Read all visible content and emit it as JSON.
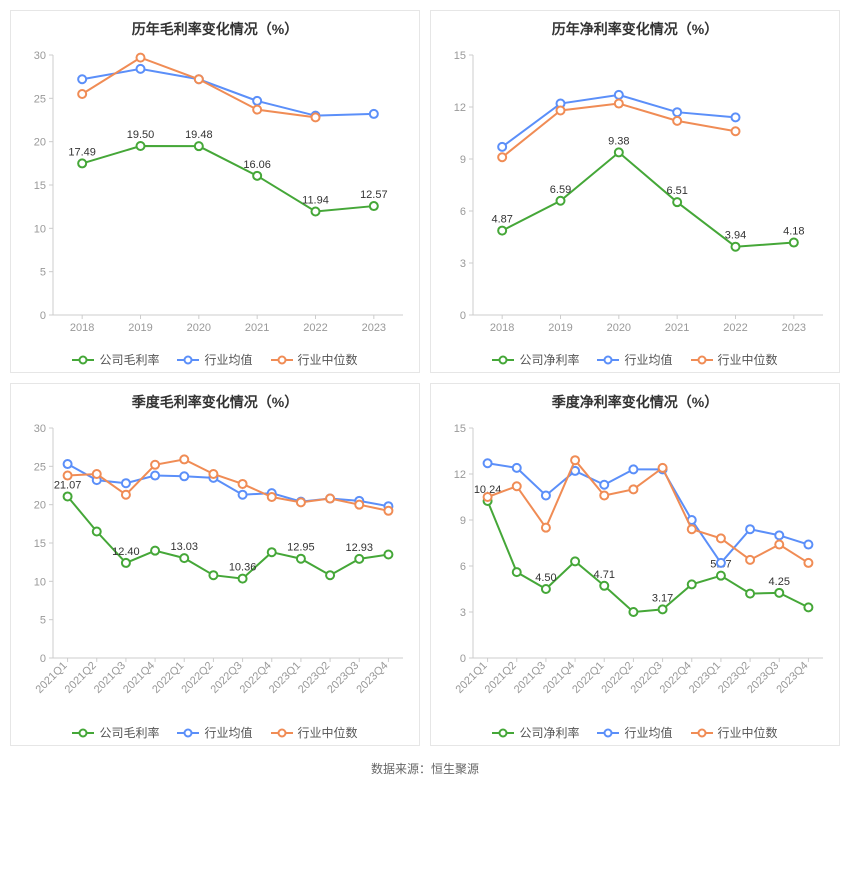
{
  "source_label": "数据来源：恒生聚源",
  "chart_defaults": {
    "title_fontsize": 14,
    "axis_fontsize": 11,
    "label_fontsize": 11,
    "tick_color": "#999999",
    "axis_line_color": "#cccccc",
    "grid": false,
    "background_color": "#ffffff",
    "marker_style": "hollow-circle",
    "marker_radius": 4,
    "line_width": 2
  },
  "colors": {
    "company": "#45a738",
    "industry_avg": "#5b8ff9",
    "industry_median": "#f08c55"
  },
  "charts": [
    {
      "id": "annual_gross",
      "title": "历年毛利率变化情况（%）",
      "x_labels": [
        "2018",
        "2019",
        "2020",
        "2021",
        "2022",
        "2023"
      ],
      "x_rotate": false,
      "ylim": [
        0,
        30
      ],
      "ytick_step": 5,
      "series": [
        {
          "name": "公司毛利率",
          "color_key": "company",
          "values": [
            17.49,
            19.5,
            19.48,
            16.06,
            11.94,
            12.57
          ],
          "show_labels": true
        },
        {
          "name": "行业均值",
          "color_key": "industry_avg",
          "values": [
            27.2,
            28.4,
            27.2,
            24.7,
            23.0,
            23.2
          ],
          "show_labels": false
        },
        {
          "name": "行业中位数",
          "color_key": "industry_median",
          "values": [
            25.5,
            29.7,
            27.2,
            23.7,
            22.8,
            null
          ],
          "show_labels": false
        }
      ],
      "legend": [
        "公司毛利率",
        "行业均值",
        "行业中位数"
      ]
    },
    {
      "id": "annual_net",
      "title": "历年净利率变化情况（%）",
      "x_labels": [
        "2018",
        "2019",
        "2020",
        "2021",
        "2022",
        "2023"
      ],
      "x_rotate": false,
      "ylim": [
        0,
        15
      ],
      "ytick_step": 3,
      "series": [
        {
          "name": "公司净利率",
          "color_key": "company",
          "values": [
            4.87,
            6.59,
            9.38,
            6.51,
            3.94,
            4.18
          ],
          "show_labels": true
        },
        {
          "name": "行业均值",
          "color_key": "industry_avg",
          "values": [
            9.7,
            12.2,
            12.7,
            11.7,
            11.4,
            null
          ],
          "show_labels": false
        },
        {
          "name": "行业中位数",
          "color_key": "industry_median",
          "values": [
            9.1,
            11.8,
            12.2,
            11.2,
            10.6,
            null
          ],
          "show_labels": false
        }
      ],
      "legend": [
        "公司净利率",
        "行业均值",
        "行业中位数"
      ]
    },
    {
      "id": "quarterly_gross",
      "title": "季度毛利率变化情况（%）",
      "x_labels": [
        "2021Q1",
        "2021Q2",
        "2021Q3",
        "2021Q4",
        "2022Q1",
        "2022Q2",
        "2022Q3",
        "2022Q4",
        "2023Q1",
        "2023Q2",
        "2023Q3",
        "2023Q4"
      ],
      "x_rotate": true,
      "ylim": [
        0,
        30
      ],
      "ytick_step": 5,
      "series": [
        {
          "name": "公司毛利率",
          "color_key": "company",
          "values": [
            21.07,
            16.5,
            12.4,
            14.0,
            13.03,
            10.8,
            10.36,
            13.8,
            12.95,
            10.8,
            12.93,
            13.5
          ],
          "show_labels": true,
          "label_idx": [
            0,
            2,
            4,
            6,
            8,
            10
          ]
        },
        {
          "name": "行业均值",
          "color_key": "industry_avg",
          "values": [
            25.3,
            23.2,
            22.8,
            23.8,
            23.7,
            23.5,
            21.3,
            21.5,
            20.4,
            20.8,
            20.5,
            19.8
          ],
          "show_labels": false
        },
        {
          "name": "行业中位数",
          "color_key": "industry_median",
          "values": [
            23.8,
            24.0,
            21.3,
            25.2,
            25.9,
            24.0,
            22.7,
            21.0,
            20.3,
            20.8,
            20.0,
            19.2
          ],
          "show_labels": false
        }
      ],
      "legend": [
        "公司毛利率",
        "行业均值",
        "行业中位数"
      ]
    },
    {
      "id": "quarterly_net",
      "title": "季度净利率变化情况（%）",
      "x_labels": [
        "2021Q1",
        "2021Q2",
        "2021Q3",
        "2021Q4",
        "2022Q1",
        "2022Q2",
        "2022Q3",
        "2022Q4",
        "2023Q1",
        "2023Q2",
        "2023Q3",
        "2023Q4"
      ],
      "x_rotate": true,
      "ylim": [
        0,
        15
      ],
      "ytick_step": 3,
      "series": [
        {
          "name": "公司净利率",
          "color_key": "company",
          "values": [
            10.24,
            5.6,
            4.5,
            6.3,
            4.71,
            3.0,
            3.17,
            4.8,
            5.37,
            4.2,
            4.25,
            3.3
          ],
          "show_labels": true,
          "label_idx": [
            0,
            2,
            4,
            6,
            8,
            10
          ]
        },
        {
          "name": "行业均值",
          "color_key": "industry_avg",
          "values": [
            12.7,
            12.4,
            10.6,
            12.2,
            11.3,
            12.3,
            12.3,
            9.0,
            6.2,
            8.4,
            8.0,
            7.4
          ],
          "show_labels": false
        },
        {
          "name": "行业中位数",
          "color_key": "industry_median",
          "values": [
            10.5,
            11.2,
            8.5,
            12.9,
            10.6,
            11.0,
            12.4,
            8.4,
            7.8,
            6.4,
            7.4,
            6.2
          ],
          "show_labels": false
        }
      ],
      "legend": [
        "公司净利率",
        "行业均值",
        "行业中位数"
      ]
    }
  ]
}
